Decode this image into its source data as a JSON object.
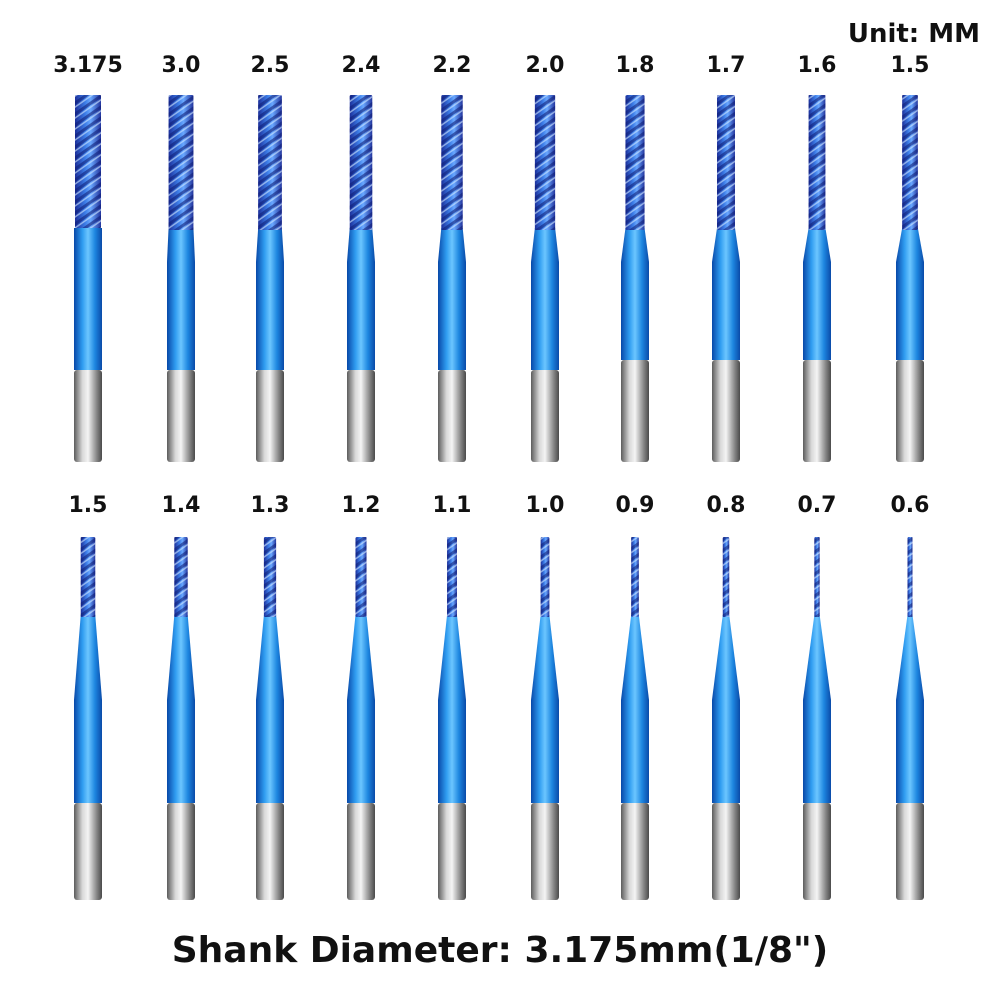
{
  "unit": "Unit: MM",
  "rows": [
    [
      "3.175",
      "3.0",
      "2.5",
      "2.4",
      "2.2",
      "2.0",
      "1.8",
      "1.7",
      "1.6",
      "1.5"
    ],
    [
      "1.5",
      "1.4",
      "1.3",
      "1.2",
      "1.1",
      "1.0",
      "0.9",
      "0.8",
      "0.7",
      "0.6"
    ]
  ],
  "footer": "Shank Diameter: 3.175mm(1/8\")"
}
